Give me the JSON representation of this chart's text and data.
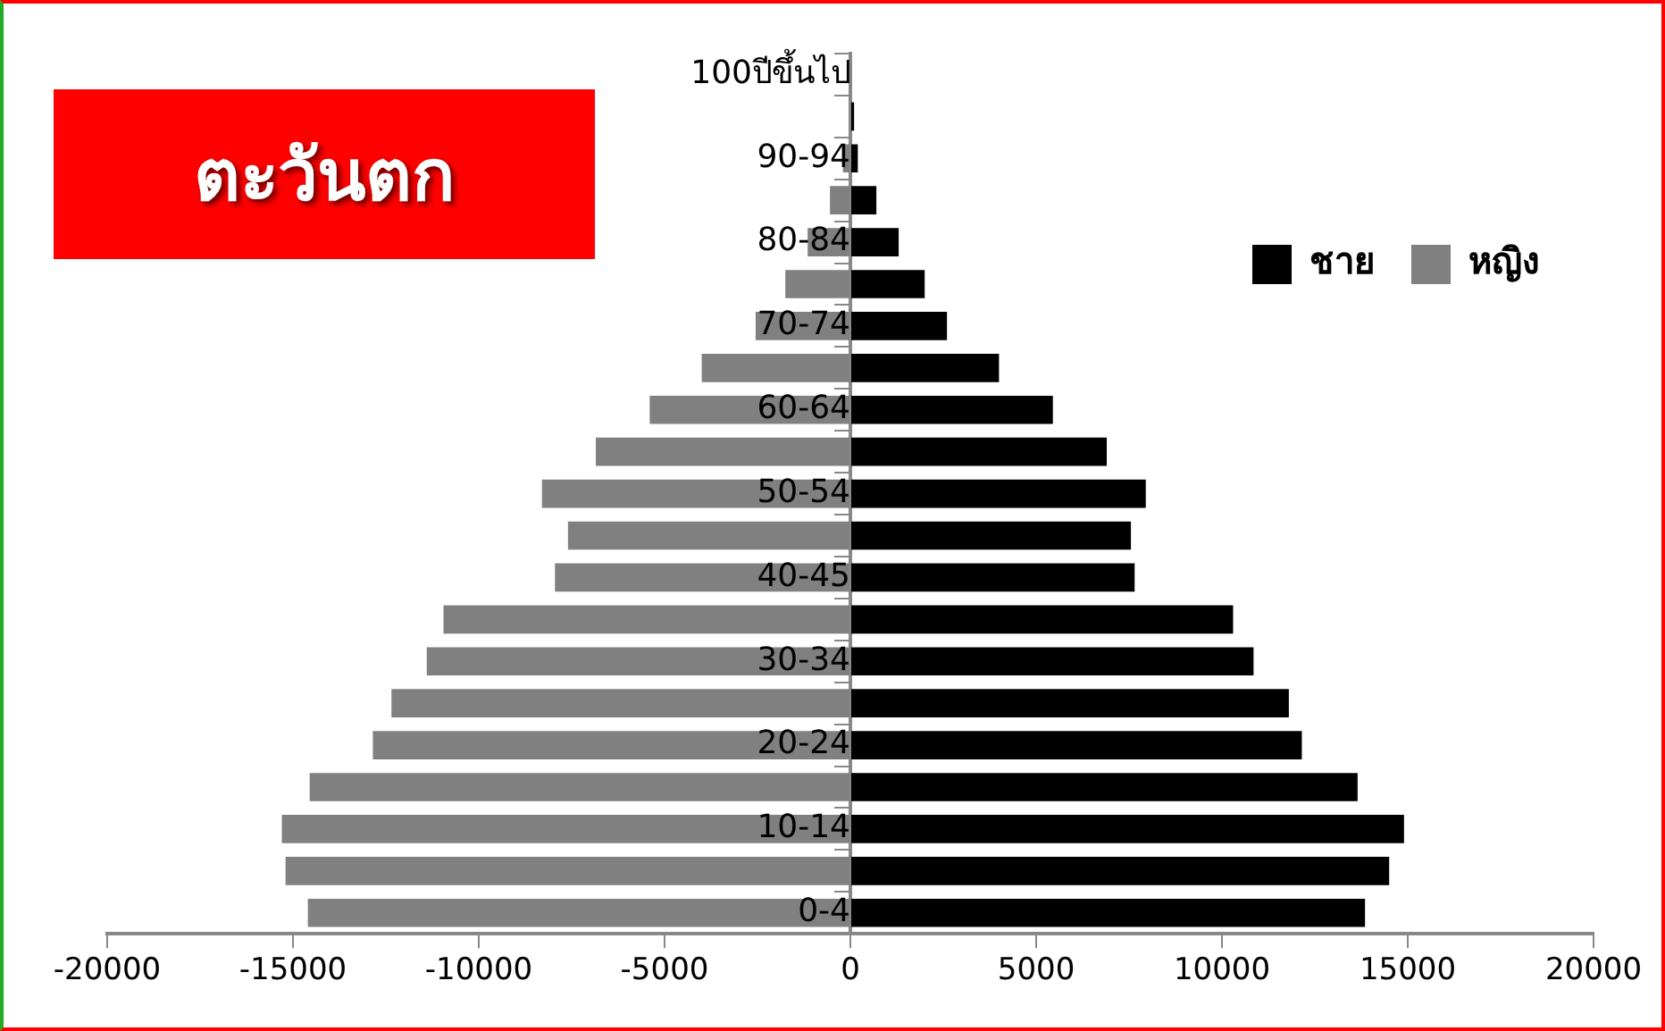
{
  "chart_data": {
    "type": "bar",
    "title": "ตะวันตก",
    "orientation": "horizontal",
    "stacked": true,
    "categories": [
      "100ปีขึ้นไป",
      null,
      "90-94",
      null,
      "80-84",
      null,
      "70-74",
      null,
      "60-64",
      null,
      "50-54",
      null,
      "40-45",
      null,
      "30-34",
      null,
      "20-24",
      null,
      "10-14",
      null,
      "0-4"
    ],
    "series": [
      {
        "name": "ชาย",
        "color": "#000000",
        "values": [
          0,
          100,
          200,
          700,
          1300,
          2000,
          2600,
          4000,
          5450,
          6900,
          7950,
          7550,
          7650,
          10300,
          10850,
          11800,
          12150,
          13650,
          14900,
          14500,
          13850
        ]
      },
      {
        "name": "หญิง",
        "color": "#808080",
        "values": [
          0,
          null,
          -200,
          -550,
          -1150,
          -1750,
          -2550,
          -4000,
          -5400,
          -6850,
          -8300,
          -7600,
          -7950,
          -10950,
          -11400,
          -12350,
          -12850,
          -14550,
          -15300,
          -15200,
          -14600
        ]
      }
    ],
    "xlim": [
      -20000,
      20000
    ],
    "xticks": [
      -20000,
      -15000,
      -10000,
      -5000,
      0,
      5000,
      10000,
      15000,
      20000
    ],
    "grid": false,
    "legend": "top right"
  }
}
